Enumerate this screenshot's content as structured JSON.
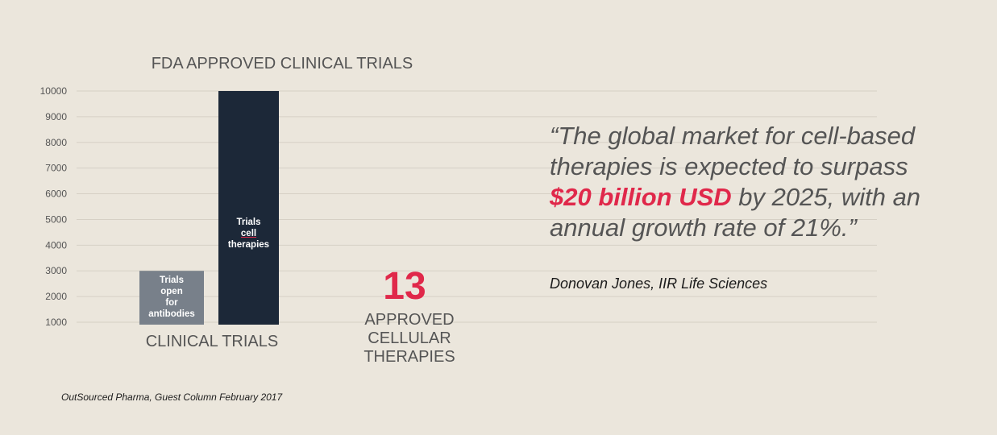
{
  "chart_data": {
    "type": "bar",
    "title": "FDA APPROVED CLINICAL TRIALS",
    "xlabel": "CLINICAL TRIALS",
    "ylabel": "",
    "ylim": [
      1000,
      10000
    ],
    "yticks": [
      1000,
      2000,
      3000,
      4000,
      5000,
      6000,
      7000,
      8000,
      9000,
      10000
    ],
    "grid": true,
    "categories": [
      "Trials open for antibodies",
      "Trials cell therapies"
    ],
    "values": [
      3000,
      10000
    ],
    "colors": [
      "#78808a",
      "#1c2838"
    ],
    "data_labels": [
      [
        "Trials",
        "open",
        "for",
        "antibodies"
      ],
      [
        "Trials",
        "cell",
        "therapies"
      ]
    ]
  },
  "callout": {
    "number": "13",
    "label_lines": [
      "APPROVED",
      "CELLULAR",
      "THERAPIES"
    ]
  },
  "quote": {
    "part1": "“The global market for cell-based therapies is expected to surpass ",
    "highlight": "$20 billion USD",
    "part2": " by 2025, with an annual growth rate of 21%.”",
    "attribution": "Donovan Jones, IIR Life Sciences"
  },
  "source": "OutSourced Pharma, Guest Column  February 2017",
  "colors": {
    "background": "#ebe6dc",
    "accent": "#e0284a",
    "grid": "#d6d0c5",
    "text": "#555555"
  }
}
